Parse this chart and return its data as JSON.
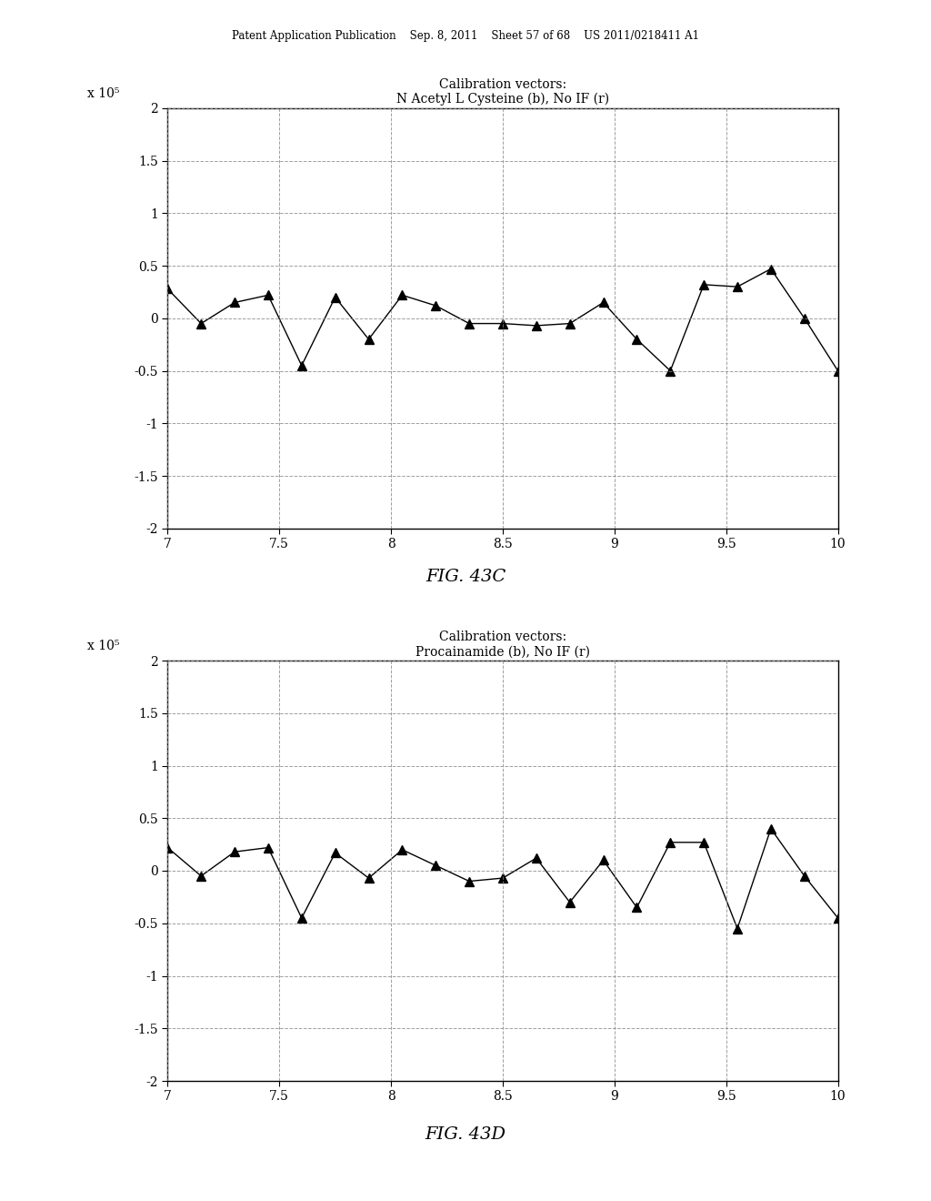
{
  "fig43c": {
    "title_line1": "Calibration vectors:",
    "title_line2": "N Acetyl L Cysteine (b), No IF (r)",
    "ylabel": "x 10⁵",
    "xlabel_vals": [
      7,
      7.5,
      8,
      8.5,
      9,
      9.5,
      10
    ],
    "yticks": [
      -2,
      -1.5,
      -1,
      -0.5,
      0,
      0.5,
      1,
      1.5,
      2
    ],
    "xlim": [
      7,
      10
    ],
    "ylim": [
      -2,
      2
    ],
    "x": [
      7.0,
      7.15,
      7.3,
      7.45,
      7.6,
      7.75,
      7.9,
      8.05,
      8.2,
      8.35,
      8.5,
      8.65,
      8.8,
      8.95,
      9.1,
      9.25,
      9.4,
      9.55,
      9.7,
      9.85,
      10.0
    ],
    "y": [
      0.28,
      -0.05,
      0.15,
      0.22,
      -0.45,
      0.2,
      -0.2,
      0.22,
      0.12,
      -0.05,
      -0.05,
      -0.07,
      -0.05,
      0.15,
      -0.2,
      -0.5,
      0.32,
      0.3,
      0.47,
      0.0,
      -0.5
    ],
    "fig_label": "FIG. 43C"
  },
  "fig43d": {
    "title_line1": "Calibration vectors:",
    "title_line2": "Procainamide (b), No IF (r)",
    "ylabel": "x 10⁵",
    "xlabel_vals": [
      7,
      7.5,
      8,
      8.5,
      9,
      9.5,
      10
    ],
    "yticks": [
      -2,
      -1.5,
      -1,
      -0.5,
      0,
      0.5,
      1,
      1.5,
      2
    ],
    "xlim": [
      7,
      10
    ],
    "ylim": [
      -2,
      2
    ],
    "x": [
      7.0,
      7.15,
      7.3,
      7.45,
      7.6,
      7.75,
      7.9,
      8.05,
      8.2,
      8.35,
      8.5,
      8.65,
      8.8,
      8.95,
      9.1,
      9.25,
      9.4,
      9.55,
      9.7,
      9.85,
      10.0
    ],
    "y": [
      0.22,
      -0.05,
      0.18,
      0.22,
      -0.45,
      0.17,
      -0.07,
      0.2,
      0.05,
      -0.1,
      -0.07,
      0.12,
      -0.3,
      0.1,
      -0.35,
      0.27,
      0.27,
      -0.55,
      0.4,
      -0.05,
      -0.45
    ],
    "fig_label": "FIG. 43D"
  },
  "header_text": "Patent Application Publication    Sep. 8, 2011    Sheet 57 of 68    US 2011/0218411 A1",
  "background_color": "#ffffff",
  "line_color": "#000000",
  "marker_color": "#000000",
  "grid_color": "#888888",
  "text_color": "#000000"
}
